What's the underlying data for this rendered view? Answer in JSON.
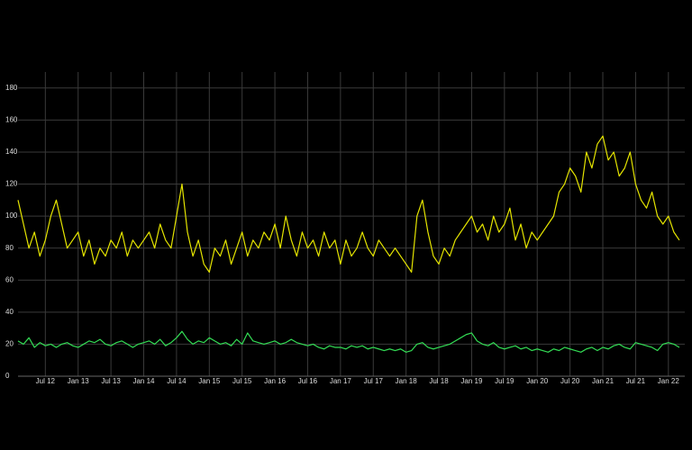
{
  "chart_data": {
    "type": "line",
    "x": [
      "2012-02",
      "2012-03",
      "2012-04",
      "2012-05",
      "2012-06",
      "2012-07",
      "2012-08",
      "2012-09",
      "2012-10",
      "2012-11",
      "2012-12",
      "2013-01",
      "2013-02",
      "2013-03",
      "2013-04",
      "2013-05",
      "2013-06",
      "2013-07",
      "2013-08",
      "2013-09",
      "2013-10",
      "2013-11",
      "2013-12",
      "2014-01",
      "2014-02",
      "2014-03",
      "2014-04",
      "2014-05",
      "2014-06",
      "2014-07",
      "2014-08",
      "2014-09",
      "2014-10",
      "2014-11",
      "2014-12",
      "2015-01",
      "2015-02",
      "2015-03",
      "2015-04",
      "2015-05",
      "2015-06",
      "2015-07",
      "2015-08",
      "2015-09",
      "2015-10",
      "2015-11",
      "2015-12",
      "2016-01",
      "2016-02",
      "2016-03",
      "2016-04",
      "2016-05",
      "2016-06",
      "2016-07",
      "2016-08",
      "2016-09",
      "2016-10",
      "2016-11",
      "2016-12",
      "2017-01",
      "2017-02",
      "2017-03",
      "2017-04",
      "2017-05",
      "2017-06",
      "2017-07",
      "2017-08",
      "2017-09",
      "2017-10",
      "2017-11",
      "2017-12",
      "2018-01",
      "2018-02",
      "2018-03",
      "2018-04",
      "2018-05",
      "2018-06",
      "2018-07",
      "2018-08",
      "2018-09",
      "2018-10",
      "2018-11",
      "2018-12",
      "2019-01",
      "2019-02",
      "2019-03",
      "2019-04",
      "2019-05",
      "2019-06",
      "2019-07",
      "2019-08",
      "2019-09",
      "2019-10",
      "2019-11",
      "2019-12",
      "2020-01",
      "2020-02",
      "2020-03",
      "2020-04",
      "2020-05",
      "2020-06",
      "2020-07",
      "2020-08",
      "2020-09",
      "2020-10",
      "2020-11",
      "2020-12",
      "2021-01",
      "2021-02",
      "2021-03",
      "2021-04",
      "2021-05",
      "2021-06",
      "2021-07",
      "2021-08",
      "2021-09",
      "2021-10",
      "2021-11",
      "2021-12",
      "2022-01",
      "2022-02",
      "2022-03"
    ],
    "series": [
      {
        "color": "#e5e500",
        "values": [
          110,
          95,
          80,
          90,
          75,
          85,
          100,
          110,
          95,
          80,
          85,
          90,
          75,
          85,
          70,
          80,
          75,
          85,
          80,
          90,
          75,
          85,
          80,
          85,
          90,
          80,
          95,
          85,
          80,
          100,
          120,
          90,
          75,
          85,
          70,
          65,
          80,
          75,
          85,
          70,
          80,
          90,
          75,
          85,
          80,
          90,
          85,
          95,
          80,
          100,
          85,
          75,
          90,
          80,
          85,
          75,
          90,
          80,
          85,
          70,
          85,
          75,
          80,
          90,
          80,
          75,
          85,
          80,
          75,
          80,
          75,
          70,
          65,
          100,
          110,
          90,
          75,
          70,
          80,
          75,
          85,
          90,
          95,
          100,
          90,
          95,
          85,
          100,
          90,
          95,
          105,
          85,
          95,
          80,
          90,
          85,
          90,
          95,
          100,
          115,
          120,
          130,
          125,
          115,
          140,
          130,
          145,
          150,
          135,
          140,
          125,
          130,
          140,
          120,
          110,
          105,
          115,
          100,
          95,
          100,
          90,
          85
        ]
      },
      {
        "color": "#33dd55",
        "values": [
          22,
          20,
          24,
          18,
          21,
          19,
          20,
          18,
          20,
          21,
          19,
          18,
          20,
          22,
          21,
          23,
          20,
          19,
          21,
          22,
          20,
          18,
          20,
          21,
          22,
          20,
          23,
          19,
          21,
          24,
          28,
          23,
          20,
          22,
          21,
          24,
          22,
          20,
          21,
          19,
          23,
          20,
          27,
          22,
          21,
          20,
          21,
          22,
          20,
          21,
          23,
          21,
          20,
          19,
          20,
          18,
          17,
          19,
          18,
          18,
          17,
          19,
          18,
          19,
          17,
          18,
          17,
          16,
          17,
          16,
          17,
          15,
          16,
          20,
          21,
          18,
          17,
          18,
          19,
          20,
          22,
          24,
          26,
          27,
          22,
          20,
          19,
          21,
          18,
          17,
          18,
          19,
          17,
          18,
          16,
          17,
          16,
          15,
          17,
          16,
          18,
          17,
          16,
          15,
          17,
          18,
          16,
          18,
          17,
          19,
          20,
          18,
          17,
          21,
          20,
          19,
          18,
          16,
          20,
          21,
          20,
          18
        ]
      }
    ],
    "xlim": [
      "2012-02",
      "2022-04"
    ],
    "xticks": [
      {
        "value": "2012-07",
        "label": "Jul 12"
      },
      {
        "value": "2013-01",
        "label": "Jan 13"
      },
      {
        "value": "2013-07",
        "label": "Jul 13"
      },
      {
        "value": "2014-01",
        "label": "Jan 14"
      },
      {
        "value": "2014-07",
        "label": "Jul 14"
      },
      {
        "value": "2015-01",
        "label": "Jan 15"
      },
      {
        "value": "2015-07",
        "label": "Jul 15"
      },
      {
        "value": "2016-01",
        "label": "Jan 16"
      },
      {
        "value": "2016-07",
        "label": "Jul 16"
      },
      {
        "value": "2017-01",
        "label": "Jan 17"
      },
      {
        "value": "2017-07",
        "label": "Jul 17"
      },
      {
        "value": "2018-01",
        "label": "Jan 18"
      },
      {
        "value": "2018-07",
        "label": "Jul 18"
      },
      {
        "value": "2019-01",
        "label": "Jan 19"
      },
      {
        "value": "2019-07",
        "label": "Jul 19"
      },
      {
        "value": "2020-01",
        "label": "Jan 20"
      },
      {
        "value": "2020-07",
        "label": "Jul 20"
      },
      {
        "value": "2021-01",
        "label": "Jan 21"
      },
      {
        "value": "2021-07",
        "label": "Jul 21"
      },
      {
        "value": "2022-01",
        "label": "Jan 22"
      }
    ],
    "ylim": [
      0,
      190
    ],
    "yticks": [
      0,
      20,
      40,
      60,
      80,
      100,
      120,
      140,
      160,
      180
    ],
    "grid": true
  }
}
